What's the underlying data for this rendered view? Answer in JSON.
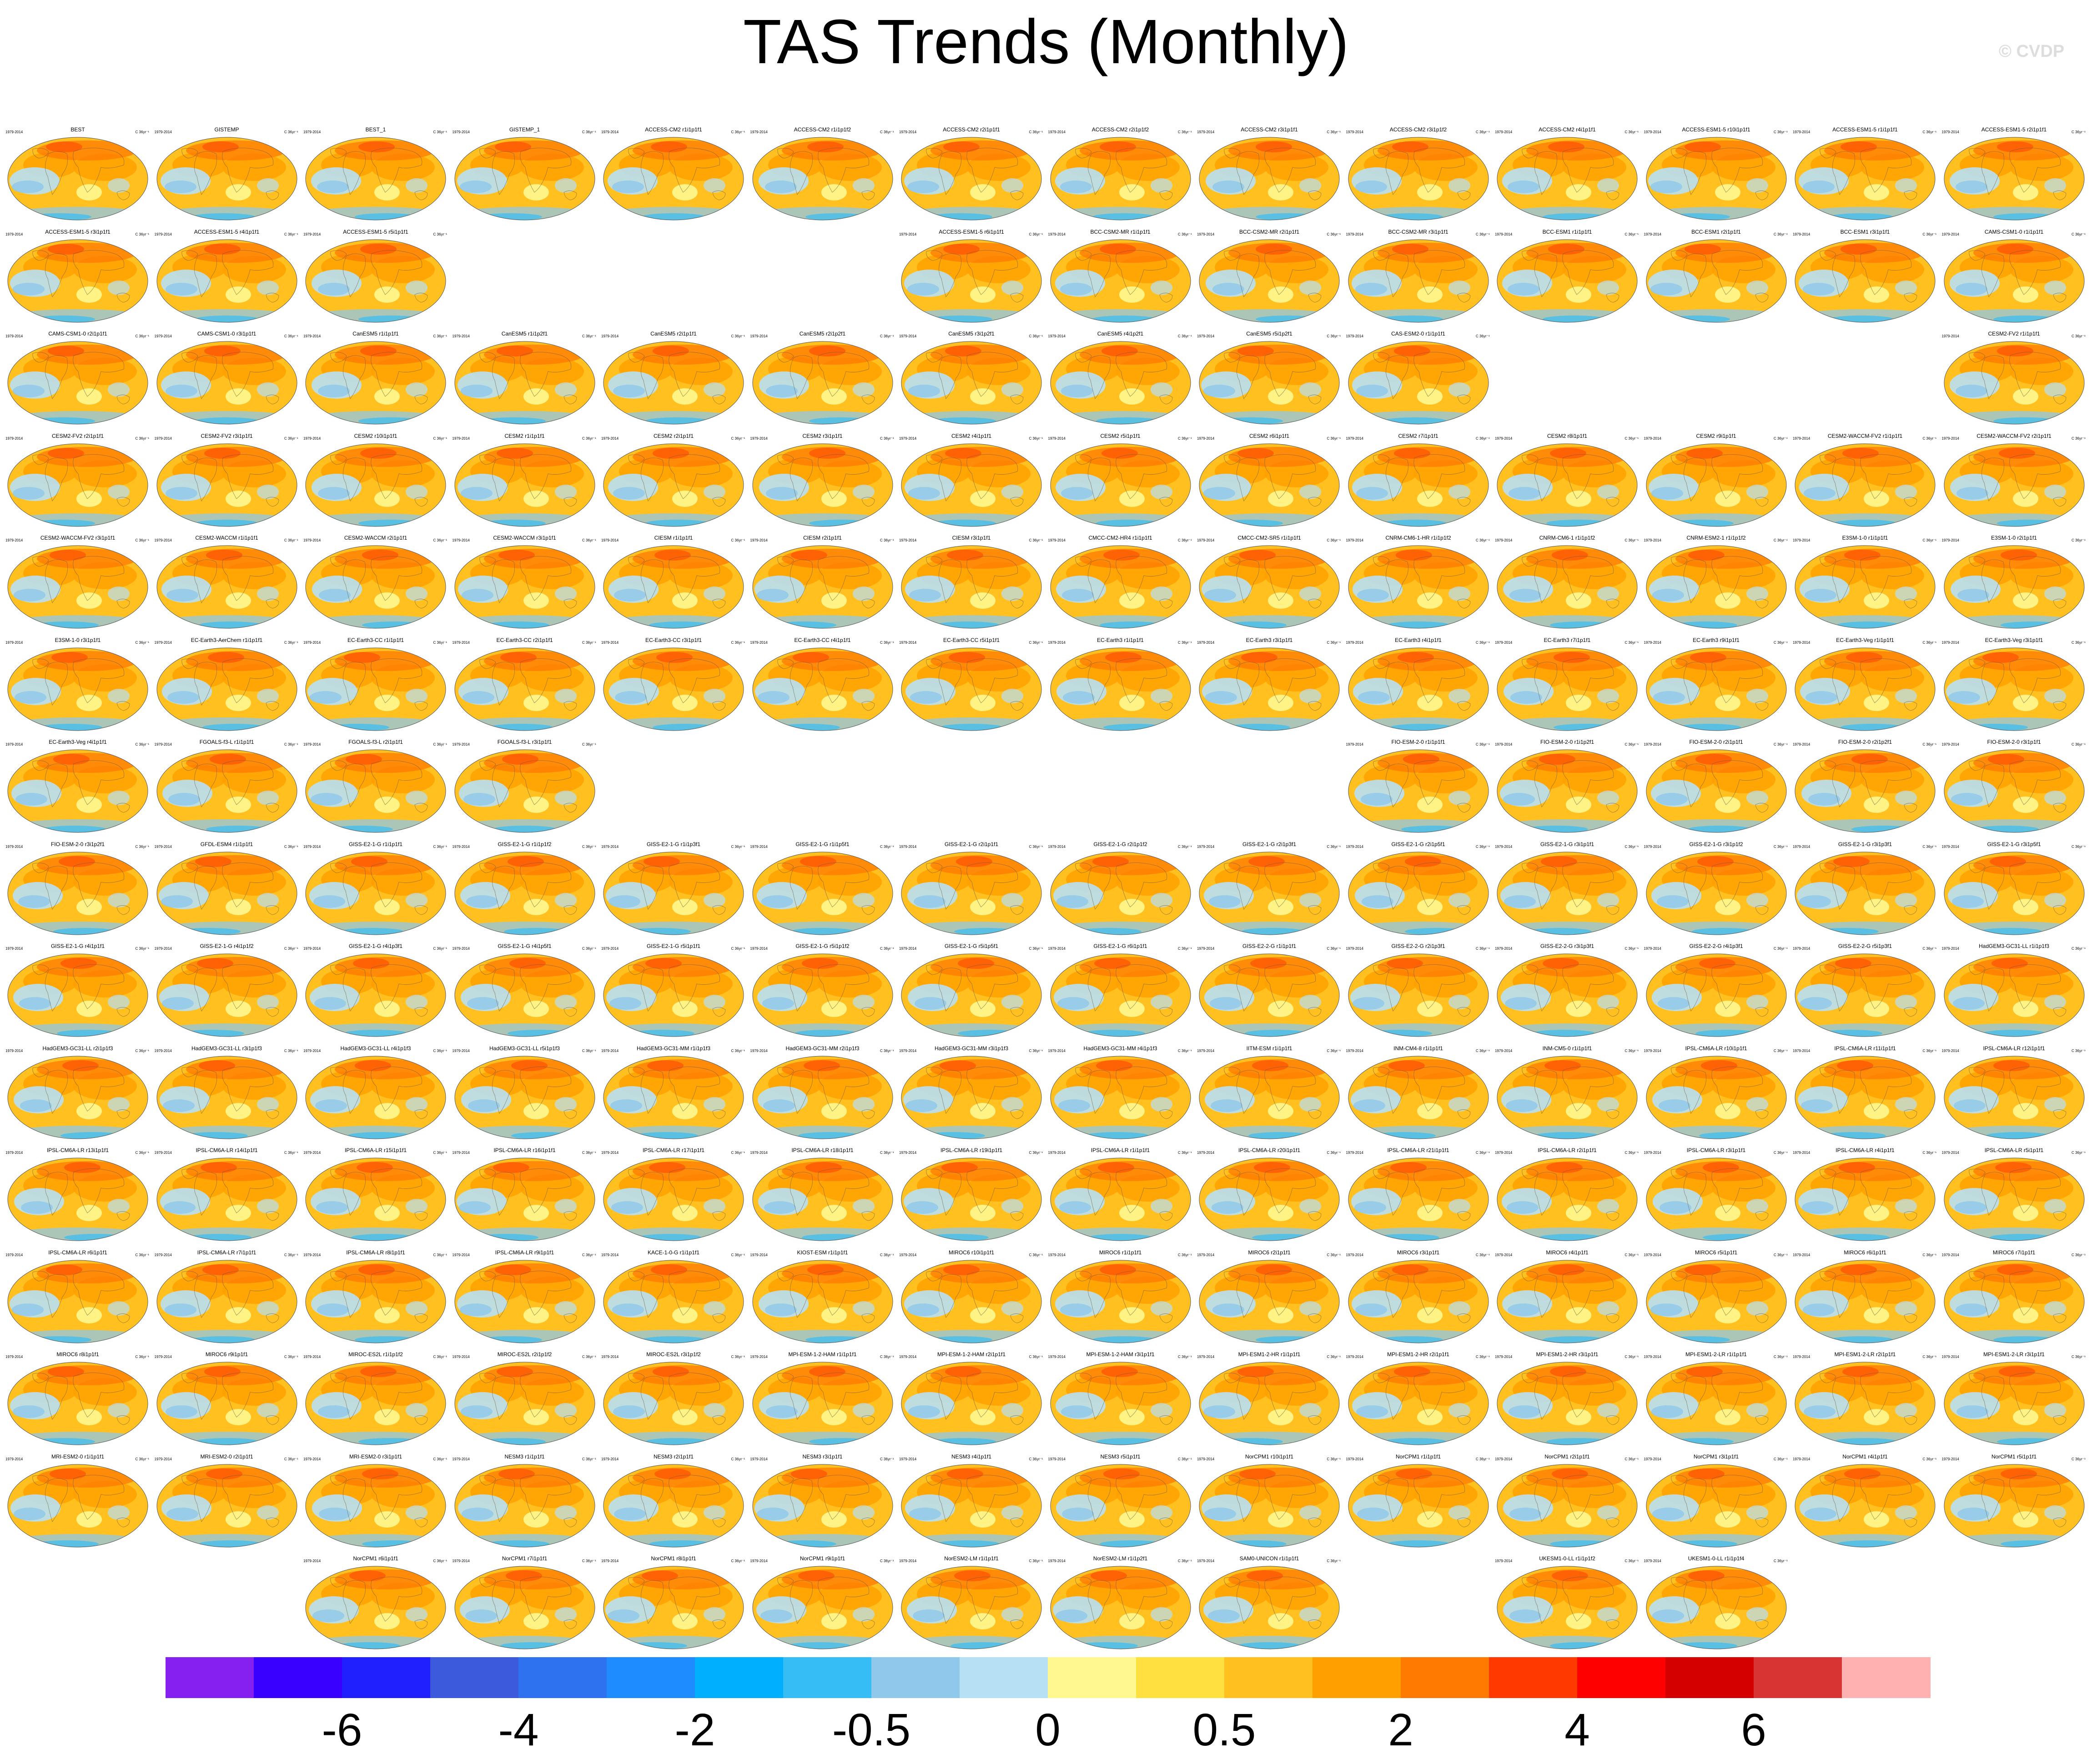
{
  "title": "TAS Trends (Monthly)",
  "watermark": "© CVDP",
  "panel_period": "1979-2014",
  "panel_units": "C 36yr⁻¹",
  "chart_data": {
    "type": "heatmap",
    "title": "TAS Trends (Monthly)",
    "period": "1979-2014",
    "units": "C 36yr⁻¹",
    "colorbar": {
      "colors": [
        "#8520f0",
        "#3a00ff",
        "#2020ff",
        "#3c5adc",
        "#2e72f0",
        "#1e8cff",
        "#00b0ff",
        "#36bdf5",
        "#8fc8ea",
        "#b8e0f4",
        "#fff890",
        "#ffe040",
        "#ffc020",
        "#ffa000",
        "#ff7a00",
        "#ff3a00",
        "#ff0000",
        "#d40000",
        "#d83434",
        "#ffb0b0"
      ],
      "tick_labels": [
        "-6",
        "-4",
        "-2",
        "-0.5",
        "0",
        "0.5",
        "2",
        "4",
        "6"
      ]
    },
    "panels": [
      {
        "name": "BEST",
        "col": 0,
        "row": 0
      },
      {
        "name": "GISTEMP",
        "col": 1,
        "row": 0
      },
      {
        "name": "BEST_1",
        "col": 2,
        "row": 0
      },
      {
        "name": "GISTEMP_1",
        "col": 3,
        "row": 0
      },
      {
        "name": "ACCESS-CM2 r1i1p1f1",
        "col": 4,
        "row": 0
      },
      {
        "name": "ACCESS-CM2 r1i1p1f2",
        "col": 5,
        "row": 0
      },
      {
        "name": "ACCESS-CM2 r2i1p1f1",
        "col": 6,
        "row": 0
      },
      {
        "name": "ACCESS-CM2 r2i1p1f2",
        "col": 7,
        "row": 0
      },
      {
        "name": "ACCESS-CM2 r3i1p1f1",
        "col": 8,
        "row": 0
      },
      {
        "name": "ACCESS-CM2 r3i1p1f2",
        "col": 9,
        "row": 0
      },
      {
        "name": "ACCESS-CM2 r4i1p1f1",
        "col": 10,
        "row": 0
      },
      {
        "name": "ACCESS-ESM1-5 r10i1p1f1",
        "col": 11,
        "row": 0
      },
      {
        "name": "ACCESS-ESM1-5 r1i1p1f1",
        "col": 12,
        "row": 0
      },
      {
        "name": "ACCESS-ESM1-5 r2i1p1f1",
        "col": 13,
        "row": 0
      },
      {
        "name": "ACCESS-ESM1-5 r3i1p1f1",
        "col": 0,
        "row": 1
      },
      {
        "name": "ACCESS-ESM1-5 r4i1p1f1",
        "col": 1,
        "row": 1
      },
      {
        "name": "ACCESS-ESM1-5 r5i1p1f1",
        "col": 2,
        "row": 1
      },
      {
        "name": "ACCESS-ESM1-5 r6i1p1f1",
        "col": 6,
        "row": 1
      },
      {
        "name": "BCC-CSM2-MR r1i1p1f1",
        "col": 7,
        "row": 1
      },
      {
        "name": "BCC-CSM2-MR r2i1p1f1",
        "col": 8,
        "row": 1
      },
      {
        "name": "BCC-CSM2-MR r3i1p1f1",
        "col": 9,
        "row": 1
      },
      {
        "name": "BCC-ESM1 r1i1p1f1",
        "col": 10,
        "row": 1
      },
      {
        "name": "BCC-ESM1 r2i1p1f1",
        "col": 11,
        "row": 1
      },
      {
        "name": "BCC-ESM1 r3i1p1f1",
        "col": 12,
        "row": 1
      },
      {
        "name": "CAMS-CSM1-0 r1i1p1f1",
        "col": 13,
        "row": 1
      },
      {
        "name": "CAMS-CSM1-0 r2i1p1f1",
        "col": 0,
        "row": 2
      },
      {
        "name": "CAMS-CSM1-0 r3i1p1f1",
        "col": 1,
        "row": 2
      },
      {
        "name": "CanESM5 r1i1p1f1",
        "col": 2,
        "row": 2
      },
      {
        "name": "CanESM5 r1i1p2f1",
        "col": 3,
        "row": 2
      },
      {
        "name": "CanESM5 r2i1p1f1",
        "col": 4,
        "row": 2
      },
      {
        "name": "CanESM5 r2i1p2f1",
        "col": 5,
        "row": 2
      },
      {
        "name": "CanESM5 r3i1p2f1",
        "col": 6,
        "row": 2
      },
      {
        "name": "CanESM5 r4i1p2f1",
        "col": 7,
        "row": 2
      },
      {
        "name": "CanESM5 r5i1p2f1",
        "col": 8,
        "row": 2
      },
      {
        "name": "CAS-ESM2-0 r1i1p1f1",
        "col": 9,
        "row": 2
      },
      {
        "name": "CESM2-FV2 r1i1p1f1",
        "col": 13,
        "row": 2
      },
      {
        "name": "CESM2-FV2 r2i1p1f1",
        "col": 0,
        "row": 3
      },
      {
        "name": "CESM2-FV2 r3i1p1f1",
        "col": 1,
        "row": 3
      },
      {
        "name": "CESM2 r10i1p1f1",
        "col": 2,
        "row": 3
      },
      {
        "name": "CESM2 r1i1p1f1",
        "col": 3,
        "row": 3
      },
      {
        "name": "CESM2 r2i1p1f1",
        "col": 4,
        "row": 3
      },
      {
        "name": "CESM2 r3i1p1f1",
        "col": 5,
        "row": 3
      },
      {
        "name": "CESM2 r4i1p1f1",
        "col": 6,
        "row": 3
      },
      {
        "name": "CESM2 r5i1p1f1",
        "col": 7,
        "row": 3
      },
      {
        "name": "CESM2 r6i1p1f1",
        "col": 8,
        "row": 3
      },
      {
        "name": "CESM2 r7i1p1f1",
        "col": 9,
        "row": 3
      },
      {
        "name": "CESM2 r8i1p1f1",
        "col": 10,
        "row": 3
      },
      {
        "name": "CESM2 r9i1p1f1",
        "col": 11,
        "row": 3
      },
      {
        "name": "CESM2-WACCM-FV2 r1i1p1f1",
        "col": 12,
        "row": 3
      },
      {
        "name": "CESM2-WACCM-FV2 r2i1p1f1",
        "col": 13,
        "row": 3
      },
      {
        "name": "CESM2-WACCM-FV2 r3i1p1f1",
        "col": 0,
        "row": 4
      },
      {
        "name": "CESM2-WACCM r1i1p1f1",
        "col": 1,
        "row": 4
      },
      {
        "name": "CESM2-WACCM r2i1p1f1",
        "col": 2,
        "row": 4
      },
      {
        "name": "CESM2-WACCM r3i1p1f1",
        "col": 3,
        "row": 4
      },
      {
        "name": "CIESM r1i1p1f1",
        "col": 4,
        "row": 4
      },
      {
        "name": "CIESM r2i1p1f1",
        "col": 5,
        "row": 4
      },
      {
        "name": "CIESM r3i1p1f1",
        "col": 6,
        "row": 4
      },
      {
        "name": "CMCC-CM2-HR4 r1i1p1f1",
        "col": 7,
        "row": 4
      },
      {
        "name": "CMCC-CM2-SR5 r1i1p1f1",
        "col": 8,
        "row": 4
      },
      {
        "name": "CNRM-CM6-1-HR r1i1p1f2",
        "col": 9,
        "row": 4
      },
      {
        "name": "CNRM-CM6-1 r1i1p1f2",
        "col": 10,
        "row": 4
      },
      {
        "name": "CNRM-ESM2-1 r1i1p1f2",
        "col": 11,
        "row": 4
      },
      {
        "name": "E3SM-1-0 r1i1p1f1",
        "col": 12,
        "row": 4
      },
      {
        "name": "E3SM-1-0 r2i1p1f1",
        "col": 13,
        "row": 4
      },
      {
        "name": "E3SM-1-0 r3i1p1f1",
        "col": 0,
        "row": 5
      },
      {
        "name": "EC-Earth3-AerChem r1i1p1f1",
        "col": 1,
        "row": 5
      },
      {
        "name": "EC-Earth3-CC r1i1p1f1",
        "col": 2,
        "row": 5
      },
      {
        "name": "EC-Earth3-CC r2i1p1f1",
        "col": 3,
        "row": 5
      },
      {
        "name": "EC-Earth3-CC r3i1p1f1",
        "col": 4,
        "row": 5
      },
      {
        "name": "EC-Earth3-CC r4i1p1f1",
        "col": 5,
        "row": 5
      },
      {
        "name": "EC-Earth3-CC r5i1p1f1",
        "col": 6,
        "row": 5
      },
      {
        "name": "EC-Earth3 r1i1p1f1",
        "col": 7,
        "row": 5
      },
      {
        "name": "EC-Earth3 r3i1p1f1",
        "col": 8,
        "row": 5
      },
      {
        "name": "EC-Earth3 r4i1p1f1",
        "col": 9,
        "row": 5
      },
      {
        "name": "EC-Earth3 r7i1p1f1",
        "col": 10,
        "row": 5
      },
      {
        "name": "EC-Earth3 r9i1p1f1",
        "col": 11,
        "row": 5
      },
      {
        "name": "EC-Earth3-Veg r1i1p1f1",
        "col": 12,
        "row": 5
      },
      {
        "name": "EC-Earth3-Veg r3i1p1f1",
        "col": 13,
        "row": 5
      },
      {
        "name": "EC-Earth3-Veg r4i1p1f1",
        "col": 0,
        "row": 6
      },
      {
        "name": "FGOALS-f3-L r1i1p1f1",
        "col": 1,
        "row": 6
      },
      {
        "name": "FGOALS-f3-L r2i1p1f1",
        "col": 2,
        "row": 6
      },
      {
        "name": "FGOALS-f3-L r3i1p1f1",
        "col": 3,
        "row": 6
      },
      {
        "name": "FIO-ESM-2-0 r1i1p1f1",
        "col": 9,
        "row": 6
      },
      {
        "name": "FIO-ESM-2-0 r1i1p2f1",
        "col": 10,
        "row": 6
      },
      {
        "name": "FIO-ESM-2-0 r2i1p1f1",
        "col": 11,
        "row": 6
      },
      {
        "name": "FIO-ESM-2-0 r2i1p2f1",
        "col": 12,
        "row": 6
      },
      {
        "name": "FIO-ESM-2-0 r3i1p1f1",
        "col": 13,
        "row": 6
      },
      {
        "name": "FIO-ESM-2-0 r3i1p2f1",
        "col": 0,
        "row": 7
      },
      {
        "name": "GFDL-ESM4 r1i1p1f1",
        "col": 1,
        "row": 7
      },
      {
        "name": "GISS-E2-1-G r1i1p1f1",
        "col": 2,
        "row": 7
      },
      {
        "name": "GISS-E2-1-G r1i1p1f2",
        "col": 3,
        "row": 7
      },
      {
        "name": "GISS-E2-1-G r1i1p3f1",
        "col": 4,
        "row": 7
      },
      {
        "name": "GISS-E2-1-G r1i1p5f1",
        "col": 5,
        "row": 7
      },
      {
        "name": "GISS-E2-1-G r2i1p1f1",
        "col": 6,
        "row": 7
      },
      {
        "name": "GISS-E2-1-G r2i1p1f2",
        "col": 7,
        "row": 7
      },
      {
        "name": "GISS-E2-1-G r2i1p3f1",
        "col": 8,
        "row": 7
      },
      {
        "name": "GISS-E2-1-G r2i1p5f1",
        "col": 9,
        "row": 7
      },
      {
        "name": "GISS-E2-1-G r3i1p1f1",
        "col": 10,
        "row": 7
      },
      {
        "name": "GISS-E2-1-G r3i1p1f2",
        "col": 11,
        "row": 7
      },
      {
        "name": "GISS-E2-1-G r3i1p3f1",
        "col": 12,
        "row": 7
      },
      {
        "name": "GISS-E2-1-G r3i1p5f1",
        "col": 13,
        "row": 7
      },
      {
        "name": "GISS-E2-1-G r4i1p1f1",
        "col": 0,
        "row": 8
      },
      {
        "name": "GISS-E2-1-G r4i1p1f2",
        "col": 1,
        "row": 8
      },
      {
        "name": "GISS-E2-1-G r4i1p3f1",
        "col": 2,
        "row": 8
      },
      {
        "name": "GISS-E2-1-G r4i1p5f1",
        "col": 3,
        "row": 8
      },
      {
        "name": "GISS-E2-1-G r5i1p1f1",
        "col": 4,
        "row": 8
      },
      {
        "name": "GISS-E2-1-G r5i1p1f2",
        "col": 5,
        "row": 8
      },
      {
        "name": "GISS-E2-1-G r5i1p5f1",
        "col": 6,
        "row": 8
      },
      {
        "name": "GISS-E2-1-G r6i1p1f1",
        "col": 7,
        "row": 8
      },
      {
        "name": "GISS-E2-2-G r1i1p1f1",
        "col": 8,
        "row": 8
      },
      {
        "name": "GISS-E2-2-G r2i1p3f1",
        "col": 9,
        "row": 8
      },
      {
        "name": "GISS-E2-2-G r3i1p3f1",
        "col": 10,
        "row": 8
      },
      {
        "name": "GISS-E2-2-G r4i1p3f1",
        "col": 11,
        "row": 8
      },
      {
        "name": "GISS-E2-2-G r5i1p3f1",
        "col": 12,
        "row": 8
      },
      {
        "name": "HadGEM3-GC31-LL r1i1p1f3",
        "col": 13,
        "row": 8
      },
      {
        "name": "HadGEM3-GC31-LL r2i1p1f3",
        "col": 0,
        "row": 9
      },
      {
        "name": "HadGEM3-GC31-LL r3i1p1f3",
        "col": 1,
        "row": 9
      },
      {
        "name": "HadGEM3-GC31-LL r4i1p1f3",
        "col": 2,
        "row": 9
      },
      {
        "name": "HadGEM3-GC31-LL r5i1p1f3",
        "col": 3,
        "row": 9
      },
      {
        "name": "HadGEM3-GC31-MM r1i1p1f3",
        "col": 4,
        "row": 9
      },
      {
        "name": "HadGEM3-GC31-MM r2i1p1f3",
        "col": 5,
        "row": 9
      },
      {
        "name": "HadGEM3-GC31-MM r3i1p1f3",
        "col": 6,
        "row": 9
      },
      {
        "name": "HadGEM3-GC31-MM r4i1p1f3",
        "col": 7,
        "row": 9
      },
      {
        "name": "IITM-ESM r1i1p1f1",
        "col": 8,
        "row": 9
      },
      {
        "name": "INM-CM4-8 r1i1p1f1",
        "col": 9,
        "row": 9
      },
      {
        "name": "INM-CM5-0 r1i1p1f1",
        "col": 10,
        "row": 9
      },
      {
        "name": "IPSL-CM6A-LR r10i1p1f1",
        "col": 11,
        "row": 9
      },
      {
        "name": "IPSL-CM6A-LR r11i1p1f1",
        "col": 12,
        "row": 9
      },
      {
        "name": "IPSL-CM6A-LR r12i1p1f1",
        "col": 13,
        "row": 9
      },
      {
        "name": "IPSL-CM6A-LR r13i1p1f1",
        "col": 0,
        "row": 10
      },
      {
        "name": "IPSL-CM6A-LR r14i1p1f1",
        "col": 1,
        "row": 10
      },
      {
        "name": "IPSL-CM6A-LR r15i1p1f1",
        "col": 2,
        "row": 10
      },
      {
        "name": "IPSL-CM6A-LR r16i1p1f1",
        "col": 3,
        "row": 10
      },
      {
        "name": "IPSL-CM6A-LR r17i1p1f1",
        "col": 4,
        "row": 10
      },
      {
        "name": "IPSL-CM6A-LR r18i1p1f1",
        "col": 5,
        "row": 10
      },
      {
        "name": "IPSL-CM6A-LR r19i1p1f1",
        "col": 6,
        "row": 10
      },
      {
        "name": "IPSL-CM6A-LR r1i1p1f1",
        "col": 7,
        "row": 10
      },
      {
        "name": "IPSL-CM6A-LR r20i1p1f1",
        "col": 8,
        "row": 10
      },
      {
        "name": "IPSL-CM6A-LR r21i1p1f1",
        "col": 9,
        "row": 10
      },
      {
        "name": "IPSL-CM6A-LR r2i1p1f1",
        "col": 10,
        "row": 10
      },
      {
        "name": "IPSL-CM6A-LR r3i1p1f1",
        "col": 11,
        "row": 10
      },
      {
        "name": "IPSL-CM6A-LR r4i1p1f1",
        "col": 12,
        "row": 10
      },
      {
        "name": "IPSL-CM6A-LR r5i1p1f1",
        "col": 13,
        "row": 10
      },
      {
        "name": "IPSL-CM6A-LR r6i1p1f1",
        "col": 0,
        "row": 11
      },
      {
        "name": "IPSL-CM6A-LR r7i1p1f1",
        "col": 1,
        "row": 11
      },
      {
        "name": "IPSL-CM6A-LR r8i1p1f1",
        "col": 2,
        "row": 11
      },
      {
        "name": "IPSL-CM6A-LR r9i1p1f1",
        "col": 3,
        "row": 11
      },
      {
        "name": "KACE-1-0-G r1i1p1f1",
        "col": 4,
        "row": 11
      },
      {
        "name": "KIOST-ESM r1i1p1f1",
        "col": 5,
        "row": 11
      },
      {
        "name": "MIROC6 r10i1p1f1",
        "col": 6,
        "row": 11
      },
      {
        "name": "MIROC6 r1i1p1f1",
        "col": 7,
        "row": 11
      },
      {
        "name": "MIROC6 r2i1p1f1",
        "col": 8,
        "row": 11
      },
      {
        "name": "MIROC6 r3i1p1f1",
        "col": 9,
        "row": 11
      },
      {
        "name": "MIROC6 r4i1p1f1",
        "col": 10,
        "row": 11
      },
      {
        "name": "MIROC6 r5i1p1f1",
        "col": 11,
        "row": 11
      },
      {
        "name": "MIROC6 r6i1p1f1",
        "col": 12,
        "row": 11
      },
      {
        "name": "MIROC6 r7i1p1f1",
        "col": 13,
        "row": 11
      },
      {
        "name": "MIROC6 r8i1p1f1",
        "col": 0,
        "row": 12
      },
      {
        "name": "MIROC6 r9i1p1f1",
        "col": 1,
        "row": 12
      },
      {
        "name": "MIROC-ES2L r1i1p1f2",
        "col": 2,
        "row": 12
      },
      {
        "name": "MIROC-ES2L r2i1p1f2",
        "col": 3,
        "row": 12
      },
      {
        "name": "MIROC-ES2L r3i1p1f2",
        "col": 4,
        "row": 12
      },
      {
        "name": "MPI-ESM-1-2-HAM r1i1p1f1",
        "col": 5,
        "row": 12
      },
      {
        "name": "MPI-ESM-1-2-HAM r2i1p1f1",
        "col": 6,
        "row": 12
      },
      {
        "name": "MPI-ESM-1-2-HAM r3i1p1f1",
        "col": 7,
        "row": 12
      },
      {
        "name": "MPI-ESM1-2-HR r1i1p1f1",
        "col": 8,
        "row": 12
      },
      {
        "name": "MPI-ESM1-2-HR r2i1p1f1",
        "col": 9,
        "row": 12
      },
      {
        "name": "MPI-ESM1-2-HR r3i1p1f1",
        "col": 10,
        "row": 12
      },
      {
        "name": "MPI-ESM1-2-LR r1i1p1f1",
        "col": 11,
        "row": 12
      },
      {
        "name": "MPI-ESM1-2-LR r2i1p1f1",
        "col": 12,
        "row": 12
      },
      {
        "name": "MPI-ESM1-2-LR r3i1p1f1",
        "col": 13,
        "row": 12
      },
      {
        "name": "MRI-ESM2-0 r1i1p1f1",
        "col": 0,
        "row": 13
      },
      {
        "name": "MRI-ESM2-0 r2i1p1f1",
        "col": 1,
        "row": 13
      },
      {
        "name": "MRI-ESM2-0 r3i1p1f1",
        "col": 2,
        "row": 13
      },
      {
        "name": "NESM3 r1i1p1f1",
        "col": 3,
        "row": 13
      },
      {
        "name": "NESM3 r2i1p1f1",
        "col": 4,
        "row": 13
      },
      {
        "name": "NESM3 r3i1p1f1",
        "col": 5,
        "row": 13
      },
      {
        "name": "NESM3 r4i1p1f1",
        "col": 6,
        "row": 13
      },
      {
        "name": "NESM3 r5i1p1f1",
        "col": 7,
        "row": 13
      },
      {
        "name": "NorCPM1 r10i1p1f1",
        "col": 8,
        "row": 13
      },
      {
        "name": "NorCPM1 r1i1p1f1",
        "col": 9,
        "row": 13
      },
      {
        "name": "NorCPM1 r2i1p1f1",
        "col": 10,
        "row": 13
      },
      {
        "name": "NorCPM1 r3i1p1f1",
        "col": 11,
        "row": 13
      },
      {
        "name": "NorCPM1 r4i1p1f1",
        "col": 12,
        "row": 13
      },
      {
        "name": "NorCPM1 r5i1p1f1",
        "col": 13,
        "row": 13
      },
      {
        "name": "NorCPM1 r6i1p1f1",
        "col": 2,
        "row": 14
      },
      {
        "name": "NorCPM1 r7i1p1f1",
        "col": 3,
        "row": 14
      },
      {
        "name": "NorCPM1 r8i1p1f1",
        "col": 4,
        "row": 14
      },
      {
        "name": "NorCPM1 r9i1p1f1",
        "col": 5,
        "row": 14
      },
      {
        "name": "NorESM2-LM r1i1p1f1",
        "col": 6,
        "row": 14
      },
      {
        "name": "NorESM2-LM r1i1p2f1",
        "col": 7,
        "row": 14
      },
      {
        "name": "SAM0-UNICON r1i1p1f1",
        "col": 8,
        "row": 14
      },
      {
        "name": "UKESM1-0-LL r1i1p1f2",
        "col": 10,
        "row": 14
      },
      {
        "name": "UKESM1-0-LL r1i1p1f4",
        "col": 11,
        "row": 14
      }
    ]
  }
}
